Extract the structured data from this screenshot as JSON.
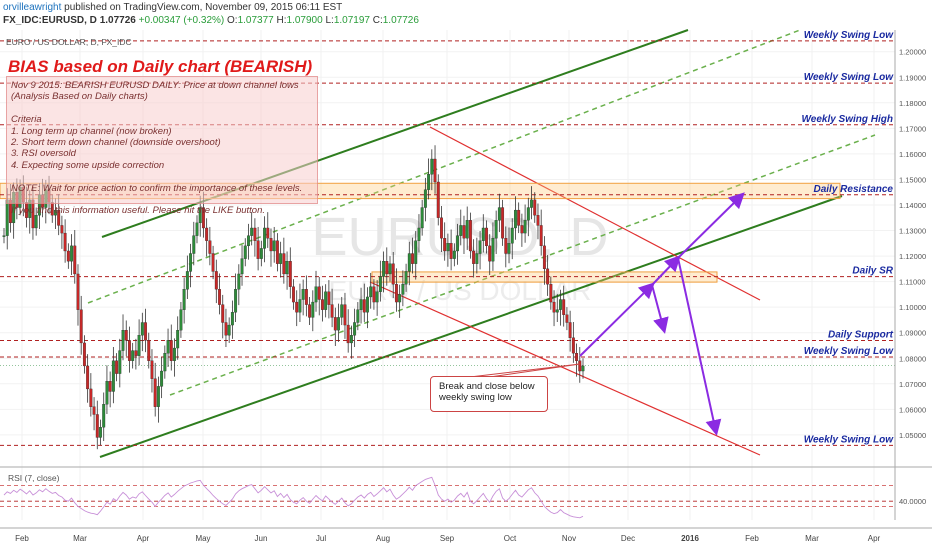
{
  "header": {
    "user": "orvilleawright",
    "published": "published on TradingView.com, November 09, 2015 06:11 EST",
    "symbol": "FX_IDC:EURUSD, D",
    "last": "1.07726",
    "change": "+0.00347 (+0.32%)",
    "o_label": "O:",
    "o": "1.07377",
    "h_label": "H:",
    "h": "1.07900",
    "l_label": "L:",
    "l": "1.07197",
    "c_label": "C:",
    "c": "1.07726"
  },
  "series_label": "EURO / US DOLLAR, D, FX_IDC",
  "watermark": {
    "symbol": "EURUSD, D",
    "name": "EURO / US DOLLAR"
  },
  "bias_title": "BIAS based on Daily chart (BEARISH)",
  "notes": [
    "Nov 9 2015: BEARISH EURUSD DAILY: Price at down channel lows",
    "(Analysis Based on Daily charts)",
    "",
    "Criteria",
    "1. Long term up channel (now broken)",
    "2. Short term down channel (downside overshoot)",
    "3. RSI oversold",
    "4. Expecting some upside correction",
    "",
    "NOTE: Wait for price action to confirm the importance of these levels.",
    "",
    "If you find this information useful. Please hit the LIKE button."
  ],
  "callout": "Break and close below weekly swing low",
  "rsi_label": "RSI (7, close)",
  "rsi_level_label": "40.0000",
  "chart_data": {
    "type": "candlestick",
    "title": "EURO / US DOLLAR, D, FX_IDC",
    "ylim": [
      1.039,
      1.2085
    ],
    "yticks": [
      "1.20000",
      "1.19000",
      "1.18000",
      "1.17000",
      "1.16000",
      "1.15000",
      "1.14000",
      "1.13000",
      "1.12000",
      "1.11000",
      "1.10000",
      "1.09000",
      "1.08000",
      "1.07000",
      "1.06000",
      "1.05000"
    ],
    "xticks": [
      "Feb",
      "Mar",
      "Apr",
      "May",
      "Jun",
      "Jul",
      "Aug",
      "Sep",
      "Oct",
      "Nov",
      "Dec",
      "2016",
      "Feb",
      "Mar",
      "Apr"
    ],
    "levels": [
      {
        "label": "Weekly Swing Low",
        "value": 1.20425,
        "price": "1.20425"
      },
      {
        "label": "Weekly Swing Low",
        "value": 1.1877,
        "price": "1.18770"
      },
      {
        "label": "Weekly Swing High",
        "value": 1.1714,
        "price": "1.17140"
      },
      {
        "label": "Daily Resistance",
        "value": 1.144,
        "price": "1.14400"
      },
      {
        "label": "Daily SR",
        "value": 1.11197,
        "price": "1.11197"
      },
      {
        "label": "Daily Support",
        "value": 1.08694,
        "price": "1.08694"
      },
      {
        "label": "Weekly Swing Low",
        "value": 1.0805,
        "price": "1.08050"
      },
      {
        "label": "Weekly Swing Low",
        "value": 1.0459,
        "price": "1.04590"
      }
    ],
    "last_price": {
      "value": 1.07726,
      "label": "1.07726"
    },
    "closes": [
      1.128,
      1.142,
      1.133,
      1.145,
      1.139,
      1.147,
      1.141,
      1.135,
      1.142,
      1.131,
      1.136,
      1.144,
      1.139,
      1.146,
      1.141,
      1.136,
      1.138,
      1.132,
      1.129,
      1.122,
      1.118,
      1.124,
      1.113,
      1.099,
      1.086,
      1.077,
      1.068,
      1.061,
      1.058,
      1.049,
      1.053,
      1.062,
      1.071,
      1.067,
      1.079,
      1.074,
      1.083,
      1.091,
      1.087,
      1.079,
      1.083,
      1.081,
      1.089,
      1.094,
      1.087,
      1.079,
      1.072,
      1.061,
      1.069,
      1.075,
      1.082,
      1.087,
      1.079,
      1.084,
      1.091,
      1.099,
      1.107,
      1.114,
      1.121,
      1.128,
      1.133,
      1.139,
      1.131,
      1.126,
      1.121,
      1.114,
      1.107,
      1.101,
      1.094,
      1.089,
      1.093,
      1.098,
      1.107,
      1.113,
      1.119,
      1.124,
      1.128,
      1.131,
      1.126,
      1.119,
      1.123,
      1.131,
      1.127,
      1.122,
      1.126,
      1.117,
      1.121,
      1.113,
      1.118,
      1.108,
      1.102,
      1.098,
      1.103,
      1.107,
      1.101,
      1.096,
      1.102,
      1.108,
      1.103,
      1.099,
      1.106,
      1.101,
      1.096,
      1.091,
      1.096,
      1.101,
      1.093,
      1.086,
      1.089,
      1.094,
      1.099,
      1.103,
      1.098,
      1.104,
      1.108,
      1.102,
      1.106,
      1.112,
      1.118,
      1.113,
      1.117,
      1.109,
      1.102,
      1.105,
      1.109,
      1.114,
      1.121,
      1.117,
      1.126,
      1.131,
      1.139,
      1.146,
      1.152,
      1.158,
      1.149,
      1.135,
      1.127,
      1.122,
      1.125,
      1.119,
      1.122,
      1.128,
      1.132,
      1.127,
      1.134,
      1.122,
      1.117,
      1.121,
      1.126,
      1.131,
      1.124,
      1.118,
      1.127,
      1.134,
      1.139,
      1.127,
      1.121,
      1.125,
      1.131,
      1.138,
      1.132,
      1.129,
      1.134,
      1.139,
      1.142,
      1.136,
      1.132,
      1.124,
      1.115,
      1.109,
      1.102,
      1.098,
      1.099,
      1.103,
      1.097,
      1.094,
      1.088,
      1.082,
      1.079,
      1.075,
      1.077
    ],
    "rsi": {
      "values": [
        52,
        58,
        55,
        61,
        57,
        63,
        59,
        54,
        60,
        52,
        56,
        62,
        58,
        64,
        59,
        55,
        57,
        51,
        48,
        42,
        40,
        46,
        37,
        30,
        26,
        22,
        19,
        17,
        16,
        14,
        21,
        29,
        38,
        34,
        45,
        41,
        50,
        57,
        52,
        44,
        48,
        46,
        54,
        58,
        51,
        44,
        38,
        30,
        38,
        44,
        51,
        56,
        48,
        53,
        59,
        64,
        69,
        72,
        75,
        77,
        79,
        80,
        71,
        64,
        58,
        51,
        45,
        40,
        35,
        32,
        38,
        44,
        54,
        60,
        64,
        67,
        70,
        72,
        64,
        56,
        61,
        68,
        62,
        56,
        60,
        49,
        55,
        47,
        53,
        43,
        38,
        35,
        42,
        47,
        40,
        36,
        44,
        51,
        45,
        41,
        50,
        44,
        38,
        34,
        40,
        46,
        37,
        31,
        35,
        42,
        48,
        52,
        46,
        53,
        57,
        49,
        54,
        60,
        66,
        58,
        63,
        52,
        44,
        48,
        54,
        60,
        67,
        61,
        70,
        74,
        78,
        82,
        84,
        86,
        71,
        52,
        44,
        40,
        44,
        38,
        42,
        50,
        55,
        48,
        57,
        40,
        35,
        41,
        48,
        55,
        45,
        38,
        50,
        59,
        64,
        46,
        40,
        45,
        53,
        61,
        52,
        48,
        55,
        62,
        66,
        56,
        50,
        40,
        30,
        24,
        19,
        16,
        18,
        24,
        18,
        15,
        12,
        10,
        9,
        8,
        11
      ],
      "levels": [
        70,
        40,
        30
      ]
    }
  }
}
